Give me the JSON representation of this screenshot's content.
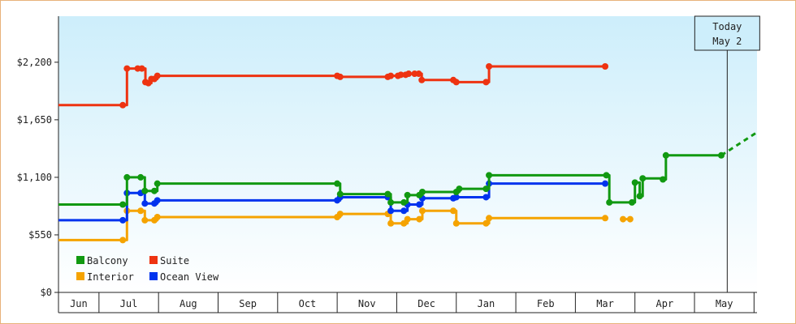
{
  "chart_data": {
    "type": "line",
    "style": "step",
    "title": "",
    "xlabel": "",
    "ylabel": "",
    "x_unit": "months",
    "x_ticks": [
      "Jun",
      "Jul",
      "Aug",
      "Sep",
      "Oct",
      "Nov",
      "Dec",
      "Jan",
      "Feb",
      "Mar",
      "Apr",
      "May"
    ],
    "y_ticks": [
      "$0",
      "$550",
      "$1,100",
      "$1,650",
      "$2,200"
    ],
    "ylim": [
      0,
      2640
    ],
    "xlim": [
      -0.18,
      11.55
    ],
    "grid": false,
    "legend_position": "bottom-left",
    "background_gradient": [
      "#cdeefb",
      "#ffffff"
    ],
    "today_label": [
      "Today",
      "May 2"
    ],
    "today_x": 11.05,
    "series": [
      {
        "name": "Balcony",
        "color": "#119911",
        "points": [
          [
            -0.18,
            840
          ],
          [
            0.9,
            840
          ],
          [
            0.97,
            1100
          ],
          [
            1.2,
            1100
          ],
          [
            1.27,
            970
          ],
          [
            1.43,
            970
          ],
          [
            1.48,
            1040
          ],
          [
            4.5,
            1040
          ],
          [
            4.55,
            940
          ],
          [
            5.35,
            940
          ],
          [
            5.4,
            860
          ],
          [
            5.62,
            860
          ],
          [
            5.68,
            930
          ],
          [
            5.88,
            930
          ],
          [
            5.93,
            960
          ],
          [
            6.5,
            960
          ],
          [
            6.55,
            990
          ],
          [
            7.0,
            990
          ],
          [
            7.05,
            1120
          ],
          [
            9.02,
            1120
          ],
          [
            9.07,
            860
          ],
          [
            9.45,
            860
          ],
          [
            9.5,
            1050
          ],
          [
            9.58,
            920
          ],
          [
            9.63,
            1090
          ],
          [
            9.97,
            1080
          ],
          [
            10.02,
            1310
          ],
          [
            10.95,
            1310
          ]
        ],
        "forecast": [
          [
            10.95,
            1310
          ],
          [
            11.55,
            1530
          ]
        ]
      },
      {
        "name": "Suite",
        "color": "#ee3311",
        "points": [
          [
            -0.18,
            1790
          ],
          [
            0.9,
            1790
          ],
          [
            0.97,
            2140
          ],
          [
            1.15,
            2140
          ],
          [
            1.22,
            2140
          ],
          [
            1.28,
            2010
          ],
          [
            1.33,
            2000
          ],
          [
            1.38,
            2040
          ],
          [
            1.43,
            2040
          ],
          [
            1.48,
            2070
          ],
          [
            4.5,
            2070
          ],
          [
            4.55,
            2060
          ],
          [
            5.35,
            2060
          ],
          [
            5.4,
            2070
          ],
          [
            5.52,
            2070
          ],
          [
            5.57,
            2080
          ],
          [
            5.65,
            2080
          ],
          [
            5.7,
            2090
          ],
          [
            5.8,
            2090
          ],
          [
            5.87,
            2090
          ],
          [
            5.92,
            2030
          ],
          [
            6.45,
            2030
          ],
          [
            6.5,
            2010
          ],
          [
            7.0,
            2010
          ],
          [
            7.05,
            2160
          ],
          [
            9.0,
            2160
          ]
        ]
      },
      {
        "name": "Interior",
        "color": "#f5a300",
        "points": [
          [
            -0.18,
            500
          ],
          [
            0.9,
            500
          ],
          [
            0.97,
            780
          ],
          [
            1.2,
            780
          ],
          [
            1.27,
            690
          ],
          [
            1.43,
            690
          ],
          [
            1.48,
            720
          ],
          [
            4.5,
            720
          ],
          [
            4.55,
            750
          ],
          [
            5.35,
            750
          ],
          [
            5.4,
            660
          ],
          [
            5.62,
            660
          ],
          [
            5.68,
            700
          ],
          [
            5.88,
            700
          ],
          [
            5.93,
            780
          ],
          [
            6.45,
            780
          ],
          [
            6.5,
            660
          ],
          [
            7.0,
            660
          ],
          [
            7.05,
            710
          ],
          [
            9.0,
            710
          ]
        ],
        "extra": [
          [
            9.3,
            700
          ],
          [
            9.42,
            700
          ]
        ]
      },
      {
        "name": "Ocean View",
        "color": "#0033ee",
        "points": [
          [
            -0.18,
            690
          ],
          [
            0.9,
            690
          ],
          [
            0.97,
            950
          ],
          [
            1.2,
            950
          ],
          [
            1.27,
            850
          ],
          [
            1.43,
            850
          ],
          [
            1.48,
            880
          ],
          [
            4.5,
            880
          ],
          [
            4.55,
            910
          ],
          [
            5.35,
            910
          ],
          [
            5.4,
            780
          ],
          [
            5.62,
            780
          ],
          [
            5.68,
            840
          ],
          [
            5.88,
            840
          ],
          [
            5.93,
            900
          ],
          [
            6.45,
            900
          ],
          [
            6.5,
            910
          ],
          [
            7.0,
            910
          ],
          [
            7.05,
            1040
          ],
          [
            9.0,
            1040
          ]
        ]
      }
    ]
  }
}
